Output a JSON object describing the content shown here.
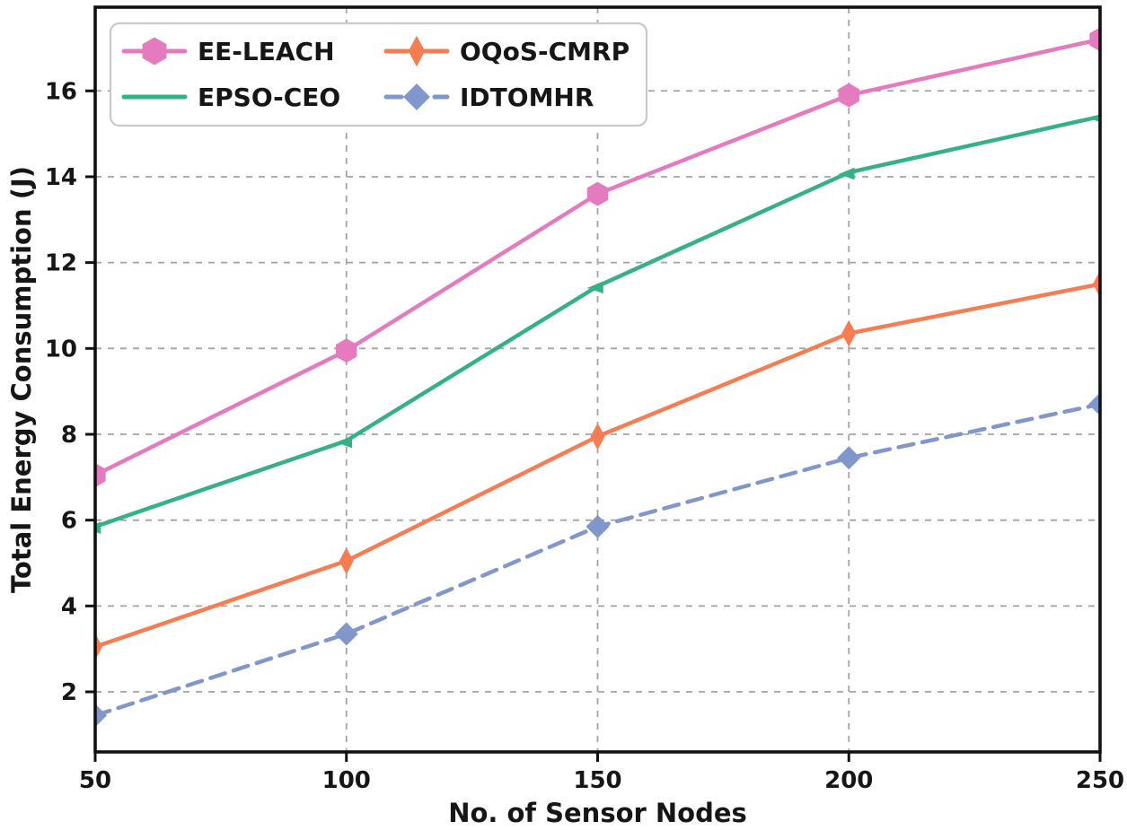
{
  "chart_data": {
    "type": "line",
    "title": "",
    "xlabel": "No. of Sensor Nodes",
    "ylabel": "Total Energy Consumption (J)",
    "x": [
      50,
      100,
      150,
      200,
      250
    ],
    "xticks": [
      50,
      100,
      150,
      200,
      250
    ],
    "yticks": [
      2,
      4,
      6,
      8,
      10,
      12,
      14,
      16
    ],
    "xlim": [
      50,
      250
    ],
    "ylim": [
      0.6,
      17.95
    ],
    "grid": true,
    "grid_style": "dashed",
    "grid_color": "#a3a3a3",
    "legend_position": "upper-left",
    "legend_columns": 2,
    "series": [
      {
        "name": "EE-LEACH",
        "color": "#e47bbf",
        "marker": "hexagon",
        "linestyle": "solid",
        "legend_marker": true,
        "values": [
          7.05,
          9.95,
          13.6,
          15.9,
          17.2
        ]
      },
      {
        "name": "EPSO-CEO",
        "color": "#36b088",
        "marker": "tri-left",
        "linestyle": "solid",
        "legend_marker": false,
        "values": [
          5.85,
          7.85,
          11.45,
          14.1,
          15.4
        ]
      },
      {
        "name": "OQoS-CMRP",
        "color": "#f67d53",
        "marker": "thin-diamond",
        "linestyle": "solid",
        "legend_marker": true,
        "values": [
          3.05,
          5.05,
          7.95,
          10.35,
          11.5
        ]
      },
      {
        "name": "IDTOMHR",
        "color": "#8197cb",
        "marker": "diamond",
        "linestyle": "dashed",
        "legend_marker": true,
        "values": [
          1.45,
          3.35,
          5.85,
          7.45,
          8.7
        ]
      }
    ],
    "frame_color": "#111111",
    "background_color": "#ffffff"
  }
}
